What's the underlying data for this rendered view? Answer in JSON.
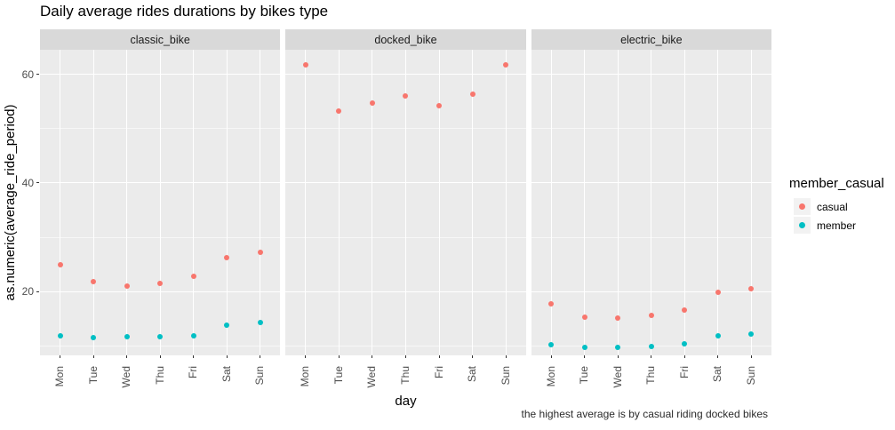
{
  "chart_data": {
    "type": "scatter",
    "title": "Daily average rides durations by bikes type",
    "caption": "the highest average is by casual riding docked bikes",
    "x": {
      "label": "day",
      "categories": [
        "Mon",
        "Tue",
        "Wed",
        "Thu",
        "Fri",
        "Sat",
        "Sun"
      ]
    },
    "y": {
      "label": "as.numeric(average_ride_period)",
      "major_ticks": [
        20,
        40,
        60
      ],
      "major_tick_labels": [
        "20",
        "40",
        "60"
      ],
      "minor_ticks": [
        10,
        30,
        50
      ],
      "domain": [
        8.3,
        64.5
      ]
    },
    "facets": [
      "classic_bike",
      "docked_bike",
      "electric_bike"
    ],
    "legend": {
      "title": "member_casual",
      "position": "right",
      "entries": [
        {
          "label": "casual",
          "color": "#F8766D"
        },
        {
          "label": "member",
          "color": "#00BFC4"
        }
      ]
    },
    "series": [
      {
        "facet": "classic_bike",
        "group": "casual",
        "values": [
          24.9,
          21.8,
          21.1,
          21.6,
          22.8,
          26.3,
          27.2
        ]
      },
      {
        "facet": "classic_bike",
        "group": "member",
        "values": [
          11.9,
          11.5,
          11.7,
          11.8,
          11.9,
          13.8,
          14.3
        ]
      },
      {
        "facet": "docked_bike",
        "group": "casual",
        "values": [
          61.7,
          53.2,
          54.7,
          56.0,
          54.2,
          56.3,
          61.7
        ]
      },
      {
        "facet": "electric_bike",
        "group": "casual",
        "values": [
          17.8,
          15.3,
          15.1,
          15.6,
          16.6,
          19.9,
          20.5
        ]
      },
      {
        "facet": "electric_bike",
        "group": "member",
        "values": [
          10.2,
          9.7,
          9.8,
          10.0,
          10.4,
          11.9,
          12.2
        ]
      }
    ],
    "style": {
      "panel_bg": "#EBEBEB",
      "strip_bg": "#D9D9D9",
      "grid_color": "#FFFFFF",
      "axis_text_color": "#4D4D4D",
      "legend_key_bg": "#F2F2F2"
    }
  }
}
